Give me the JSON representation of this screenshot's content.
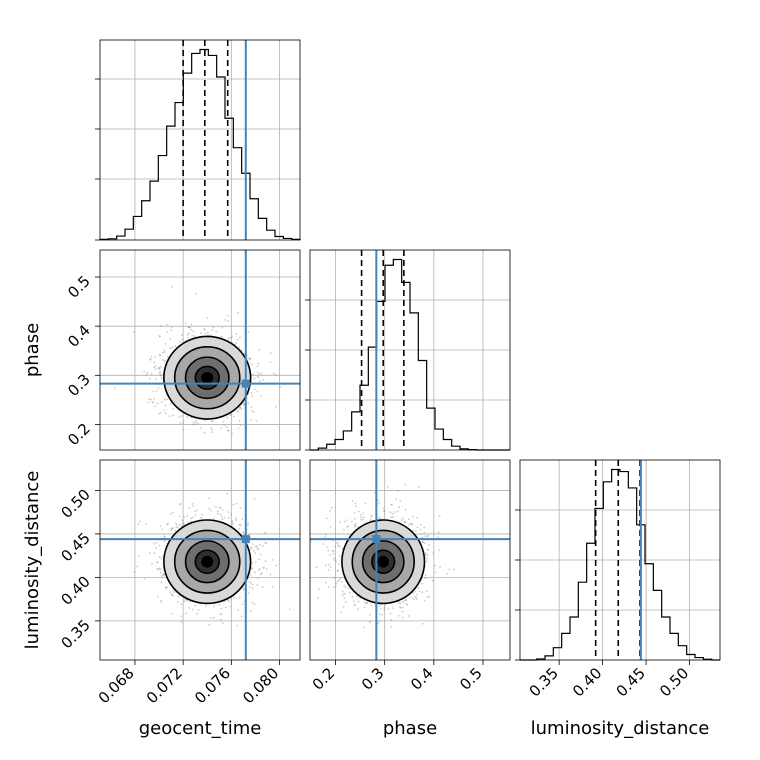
{
  "chart_data": {
    "type": "corner",
    "parameters": [
      {
        "name": "geocent_time",
        "label": "geocent_time",
        "range": [
          0.0651,
          0.0817
        ],
        "ticks": [
          0.068,
          0.072,
          0.076,
          0.08
        ],
        "tick_labels": [
          "0.068",
          "0.072",
          "0.076",
          "0.080"
        ]
      },
      {
        "name": "phase",
        "label": "phase",
        "range": [
          0.148,
          0.555
        ],
        "ticks": [
          0.2,
          0.3,
          0.4,
          0.5
        ],
        "tick_labels": [
          "0.2",
          "0.3",
          "0.4",
          "0.5"
        ]
      },
      {
        "name": "luminosity_distance",
        "label": "luminosity_distance",
        "range": [
          0.305,
          0.535
        ],
        "ticks": [
          0.35,
          0.4,
          0.45,
          0.5
        ],
        "tick_labels": [
          "0.35",
          "0.40",
          "0.45",
          "0.50"
        ]
      }
    ],
    "truths": {
      "geocent_time": 0.0772,
      "phase": 0.283,
      "luminosity_distance": 0.444
    },
    "quantiles": {
      "geocent_time": [
        0.072,
        0.0738,
        0.0757
      ],
      "phase": [
        0.253,
        0.297,
        0.339
      ],
      "luminosity_distance": [
        0.392,
        0.418,
        0.443
      ]
    },
    "histograms": {
      "geocent_time": {
        "bins": [
          0.0651,
          0.0817
        ],
        "values": [
          0.003,
          0.006,
          0.02,
          0.055,
          0.12,
          0.2,
          0.3,
          0.43,
          0.58,
          0.7,
          0.85,
          0.95,
          0.97,
          0.94,
          0.83,
          0.62,
          0.47,
          0.34,
          0.21,
          0.11,
          0.05,
          0.018,
          0.008,
          0.003
        ]
      },
      "phase": {
        "bins": [
          0.148,
          0.555
        ],
        "values": [
          0,
          0.01,
          0.03,
          0.055,
          0.1,
          0.2,
          0.34,
          0.54,
          0.78,
          0.97,
          1.0,
          0.88,
          0.72,
          0.47,
          0.22,
          0.11,
          0.055,
          0.02,
          0.006,
          0.002,
          0,
          0,
          0,
          0
        ]
      },
      "luminosity_distance": {
        "bins": [
          0.305,
          0.535
        ],
        "values": [
          0,
          0,
          0.005,
          0.02,
          0.06,
          0.13,
          0.21,
          0.38,
          0.57,
          0.74,
          0.87,
          0.93,
          0.92,
          0.84,
          0.66,
          0.47,
          0.34,
          0.21,
          0.13,
          0.07,
          0.027,
          0.012,
          0.004,
          0
        ]
      }
    },
    "density_2d": [
      {
        "x": "geocent_time",
        "y": "phase",
        "center": [
          0.074,
          0.295
        ],
        "sigma": [
          0.0018,
          0.042
        ]
      },
      {
        "x": "geocent_time",
        "y": "luminosity_distance",
        "center": [
          0.074,
          0.418
        ],
        "sigma": [
          0.0018,
          0.024
        ]
      },
      {
        "x": "phase",
        "y": "luminosity_distance",
        "center": [
          0.297,
          0.418
        ],
        "sigma": [
          0.042,
          0.024
        ]
      }
    ],
    "grid": true,
    "colors": {
      "truth": "#4682b4",
      "hist": "#000000",
      "quantile": "#000000",
      "scatter": "#8c8c8c",
      "grid": "#b0b0b0"
    }
  }
}
